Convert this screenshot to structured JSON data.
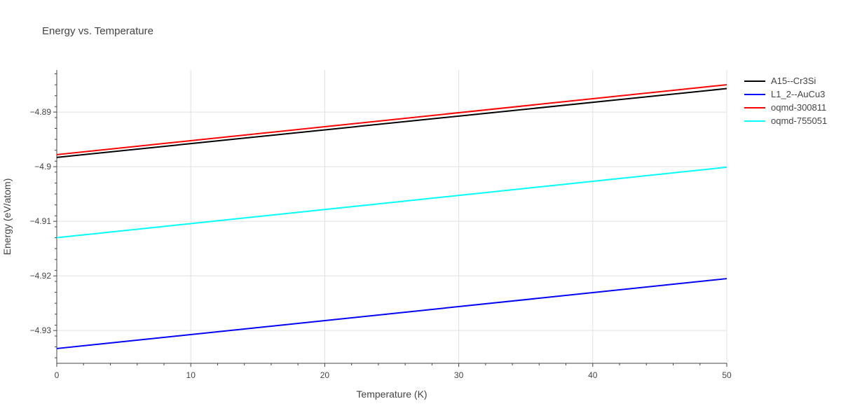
{
  "chart_data": {
    "type": "line",
    "title": "Energy vs. Temperature",
    "xlabel": "Temperature (K)",
    "ylabel": "Energy (eV/atom)",
    "xlim": [
      0,
      50
    ],
    "ylim": [
      -4.936,
      -4.8823
    ],
    "x_ticks": [
      "0",
      "10",
      "20",
      "30",
      "40",
      "50"
    ],
    "y_ticks": [
      "−4.93",
      "−4.92",
      "−4.91",
      "−4.9",
      "−4.89"
    ],
    "y_tick_values": [
      -4.93,
      -4.92,
      -4.91,
      -4.9,
      -4.89
    ],
    "grid": true,
    "legend_position": "top-right",
    "series": [
      {
        "name": "A15--Cr3Si",
        "color": "#000000",
        "x": [
          0,
          50
        ],
        "y": [
          -4.8983,
          -4.8857
        ]
      },
      {
        "name": "L1_2--AuCu3",
        "color": "#0000ff",
        "x": [
          0,
          50
        ],
        "y": [
          -4.9333,
          -4.9205
        ]
      },
      {
        "name": "oqmd-300811",
        "color": "#ff0000",
        "x": [
          0,
          50
        ],
        "y": [
          -4.8978,
          -4.885
        ]
      },
      {
        "name": "oqmd-755051",
        "color": "#00ffff",
        "x": [
          0,
          50
        ],
        "y": [
          -4.913,
          -4.9001
        ]
      }
    ]
  }
}
